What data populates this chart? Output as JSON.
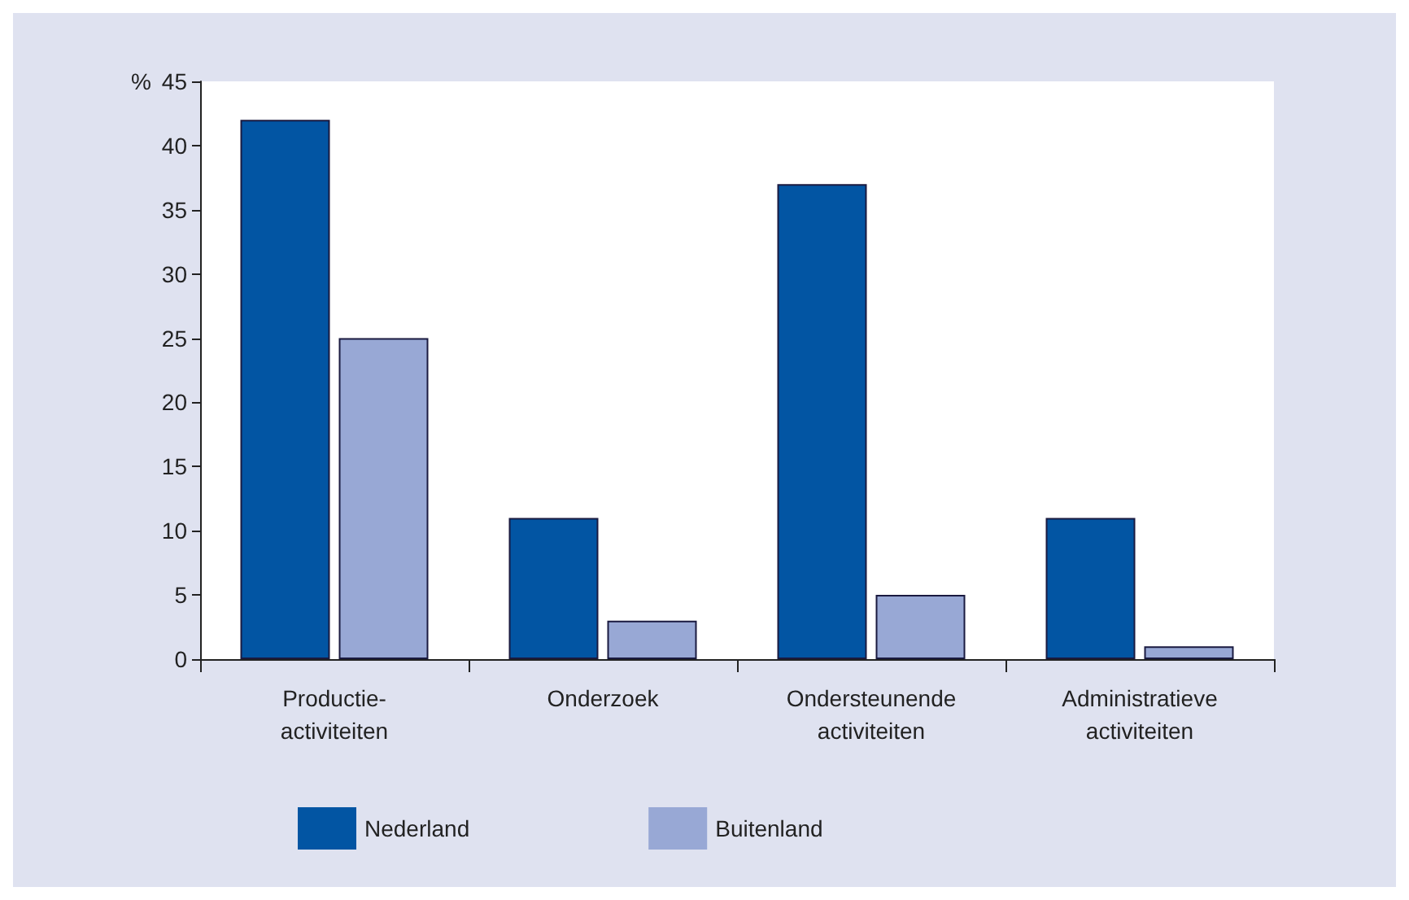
{
  "chart_data": {
    "type": "bar",
    "ylabel": "%",
    "categories": [
      "Productie-\nactiviteiten",
      "Onderzoek",
      "Ondersteunende\nactiviteiten",
      "Administratieve\nactiviteiten"
    ],
    "series": [
      {
        "name": "Nederland",
        "color": "#0255a3",
        "values": [
          42,
          11,
          37,
          11
        ]
      },
      {
        "name": "Buitenland",
        "color": "#98a8d5",
        "values": [
          25,
          3,
          5,
          1
        ]
      }
    ],
    "ylim": [
      0,
      45
    ],
    "yticks": [
      0,
      5,
      10,
      15,
      20,
      25,
      30,
      35,
      40,
      45
    ],
    "grid": false,
    "legend": "bottom left"
  }
}
